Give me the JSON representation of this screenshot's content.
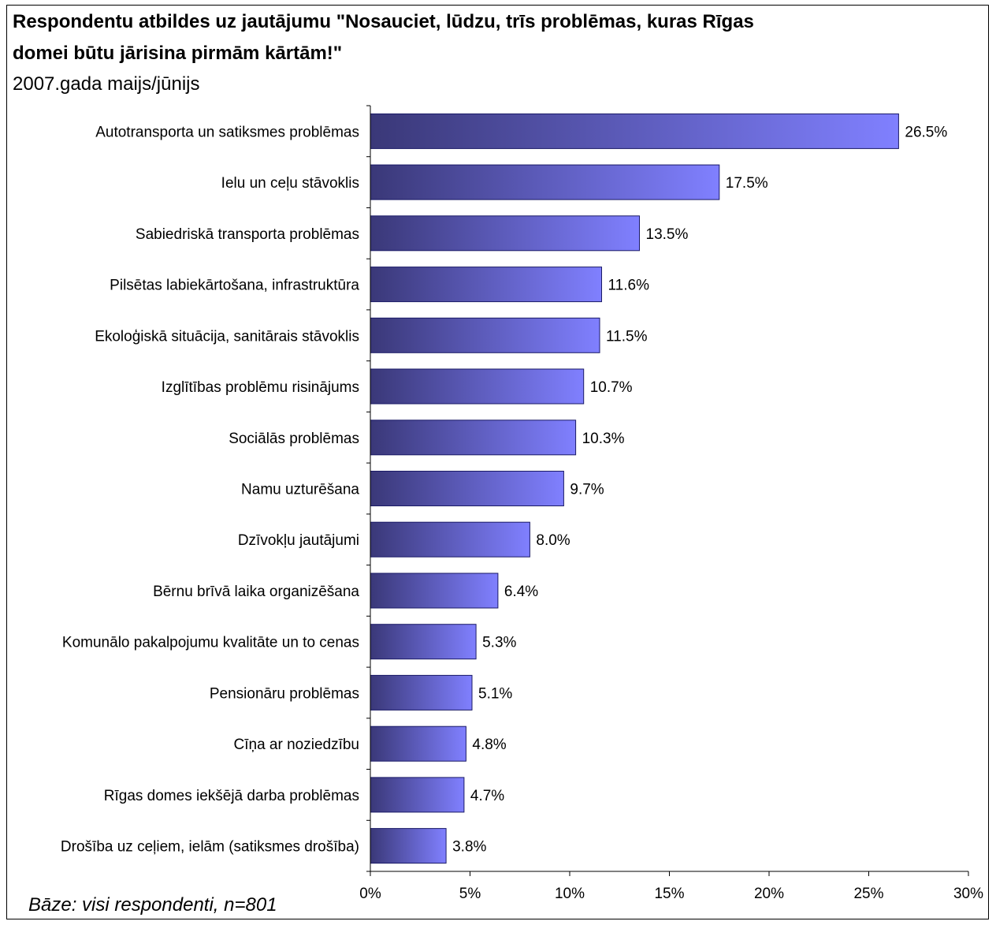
{
  "title_line1": "Respondentu atbildes uz jautājumu \"Nosauciet, lūdzu, trīs problēmas, kuras Rīgas",
  "title_line2": "domei būtu jārisina pirmām kārtām!\"",
  "subtitle": "2007.gada maijs/jūnijs",
  "footnote": "Bāze: visi respondenti, n=801",
  "colors": {
    "bar_dark": "#3a3878",
    "bar_light": "#8080ff",
    "bar_stroke": "#1a1a66"
  },
  "chart_data": {
    "type": "bar",
    "orientation": "horizontal",
    "title": "Respondentu atbildes uz jautājumu \"Nosauciet, lūdzu, trīs problēmas, kuras Rīgas domei būtu jārisina pirmām kārtām!\"",
    "subtitle": "2007.gada maijs/jūnijs",
    "categories": [
      "Autotransporta un satiksmes problēmas",
      "Ielu un ceļu stāvoklis",
      "Sabiedriskā transporta problēmas",
      "Pilsētas labiekārtošana, infrastruktūra",
      "Ekoloģiskā situācija, sanitārais stāvoklis",
      "Izglītības problēmu risinājums",
      "Sociālās problēmas",
      "Namu uzturēšana",
      "Dzīvokļu jautājumi",
      "Bērnu brīvā laika organizēšana",
      "Komunālo pakalpojumu kvalitāte un to cenas",
      "Pensionāru problēmas",
      "Cīņa ar noziedzību",
      "Rīgas domes iekšējā darba problēmas",
      "Drošība uz ceļiem, ielām (satiksmes drošība)"
    ],
    "values": [
      26.5,
      17.5,
      13.5,
      11.6,
      11.5,
      10.7,
      10.3,
      9.7,
      8.0,
      6.4,
      5.3,
      5.1,
      4.8,
      4.7,
      3.8
    ],
    "value_labels": [
      "26.5%",
      "17.5%",
      "13.5%",
      "11.6%",
      "11.5%",
      "10.7%",
      "10.3%",
      "9.7%",
      "8.0%",
      "6.4%",
      "5.3%",
      "5.1%",
      "4.8%",
      "4.7%",
      "3.8%"
    ],
    "xticks": [
      0,
      5,
      10,
      15,
      20,
      25,
      30
    ],
    "xtick_labels": [
      "0%",
      "5%",
      "10%",
      "15%",
      "20%",
      "25%",
      "30%"
    ],
    "xlim": [
      0,
      30
    ],
    "xlabel": "",
    "ylabel": "",
    "grid": false,
    "legend": "none"
  }
}
